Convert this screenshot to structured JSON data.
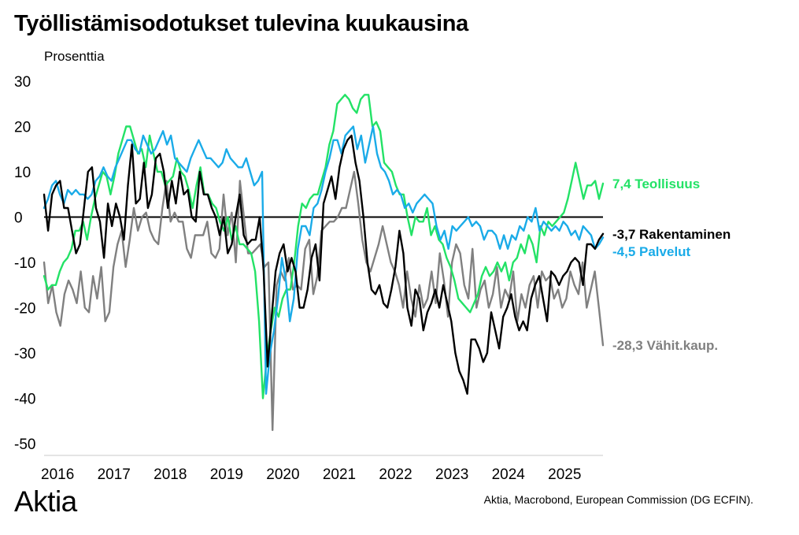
{
  "title": "Työllistämisodotukset tulevina kuukausina",
  "brand": "Aktia",
  "source": "Aktia, Macrobond, European Commission (DG ECFIN).",
  "chart_data": {
    "type": "line",
    "ylabel": "Prosenttia",
    "ylim": [
      -50,
      30
    ],
    "yticks": [
      30,
      20,
      10,
      0,
      -10,
      -20,
      -30,
      -40,
      -50
    ],
    "xlim": [
      2016.0,
      2025.92
    ],
    "xticks": [
      2016,
      2017,
      2018,
      2019,
      2020,
      2021,
      2022,
      2023,
      2024,
      2025
    ],
    "zero_line": true,
    "grid": false,
    "legend": "end-of-line labels",
    "series": [
      {
        "name": "Vähit.kaup.",
        "end_label": "-28,3 Vähit.kaup.",
        "color": "#808080",
        "draw_order": 0,
        "values": [
          -10,
          -19,
          -15,
          -21,
          -24,
          -17,
          -14,
          -16,
          -19,
          -12,
          -20,
          -21,
          -13,
          -18,
          -11,
          -23,
          -21,
          -11,
          -6,
          -3,
          -11,
          -5,
          2,
          -3,
          0,
          1,
          -3,
          -5,
          -6,
          2,
          8,
          -1,
          1,
          -1,
          -1,
          -7,
          -9,
          -4,
          -4,
          -4,
          -1,
          -8,
          -9,
          -7,
          5,
          -4,
          1,
          -10,
          8,
          0,
          -8,
          -8,
          -7,
          -6,
          -11,
          -10,
          -47,
          -15,
          -12,
          -14,
          -9,
          -16,
          -15,
          -16,
          -7,
          -5,
          -17,
          -13,
          -3,
          -2,
          -1,
          -1,
          0,
          2,
          2,
          6,
          10,
          3,
          -5,
          -10,
          -12,
          -9,
          -6,
          -2,
          -6,
          -10,
          -12,
          -15,
          -20,
          -12,
          -18,
          -22,
          -15,
          -20,
          -18,
          -12,
          -19,
          -8,
          -14,
          -22,
          -10,
          -6,
          -8,
          -15,
          -18,
          -7,
          -20,
          -16,
          -14,
          -20,
          -17,
          -11,
          -20,
          -16,
          -18,
          -12,
          -23,
          -17,
          -20,
          -15,
          -13,
          -20,
          -12,
          -14,
          -13,
          -18,
          -16,
          -20,
          -18,
          -12,
          -15,
          -17,
          -10,
          -20,
          -16,
          -12,
          -20,
          -28.3
        ]
      },
      {
        "name": "Teollisuus",
        "end_label": "7,4 Teollisuus",
        "color": "#23e266",
        "draw_order": 1,
        "values": [
          -13,
          -16,
          -15,
          -15,
          -12,
          -10,
          -9,
          -7,
          -3,
          -3,
          -1,
          -5,
          0,
          4,
          7,
          10,
          9,
          5,
          9,
          14,
          17,
          20,
          20,
          17,
          14,
          15,
          11,
          18,
          14,
          10,
          10,
          7,
          8,
          9,
          13,
          10,
          9,
          6,
          2,
          7,
          11,
          5,
          5,
          3,
          2,
          -1,
          -3,
          0,
          -5,
          -2,
          -6,
          -6,
          -7,
          -8,
          -12,
          -23,
          -40,
          -31,
          -25,
          -20,
          -22,
          -18,
          -16,
          -16,
          -10,
          -2,
          3,
          2,
          4,
          5,
          5,
          8,
          11,
          16,
          19,
          25,
          26,
          27,
          26,
          24,
          23,
          26,
          27,
          27,
          20,
          21,
          19,
          12,
          11,
          10,
          7,
          5,
          5,
          0,
          -4,
          0,
          -1,
          -1,
          2,
          -4,
          -2,
          -5,
          -6,
          -9,
          -11,
          -14,
          -18,
          -19,
          -20,
          -21,
          -19,
          -17,
          -13,
          -11,
          -13,
          -12,
          -10,
          -12,
          -10,
          -14,
          -10,
          -9,
          -6,
          -8,
          -4,
          -6,
          -10,
          -2,
          -4,
          -1,
          -2,
          -1,
          0,
          1,
          4,
          8,
          12,
          8,
          4,
          7,
          7,
          8,
          4,
          7.4
        ]
      },
      {
        "name": "Palvelut",
        "end_label": "-4,5 Palvelut",
        "color": "#1aabe8",
        "draw_order": 2,
        "values": [
          2,
          4,
          7,
          8,
          5,
          3,
          6,
          5,
          6,
          5,
          5,
          4,
          5,
          8,
          9,
          11,
          9,
          8,
          11,
          13,
          15,
          17,
          17,
          15,
          14,
          18,
          16,
          14,
          15,
          17,
          19,
          16,
          18,
          13,
          12,
          11,
          10,
          13,
          15,
          17,
          15,
          13,
          13,
          12,
          11,
          12,
          15,
          13,
          12,
          11,
          11,
          13,
          10,
          7,
          8,
          10,
          -39,
          -30,
          -25,
          -18,
          -9,
          -14,
          -23,
          -18,
          -7,
          -2,
          -2,
          -4,
          2,
          3,
          6,
          10,
          13,
          17,
          17,
          14,
          18,
          19,
          20,
          15,
          18,
          12,
          16,
          20,
          14,
          11,
          10,
          8,
          5,
          6,
          5,
          2,
          3,
          1,
          3,
          4,
          5,
          4,
          3,
          -2,
          -5,
          -3,
          -7,
          -2,
          -3,
          -2,
          -1,
          0,
          -2,
          -1,
          -2,
          -5,
          -3,
          -3,
          -4,
          -7,
          -4,
          -7,
          -4,
          -5,
          -2,
          -3,
          0,
          -1,
          2,
          -3,
          -1,
          -2,
          -3,
          -2,
          -3,
          -1,
          -2,
          -4,
          -3,
          -5,
          -2,
          -3,
          -4,
          -7,
          -6,
          -4.5
        ]
      },
      {
        "name": "Rakentaminen",
        "end_label": "-3,7 Rakentaminen",
        "color": "#000000",
        "draw_order": 3,
        "values": [
          5,
          -3,
          5,
          7,
          8,
          2,
          2,
          -3,
          -8,
          -6,
          2,
          10,
          11,
          2,
          -1,
          -9,
          3,
          -2,
          3,
          0,
          -5,
          7,
          16,
          3,
          4,
          12,
          2,
          5,
          13,
          14,
          10,
          2,
          8,
          3,
          10,
          5,
          6,
          0,
          -1,
          10,
          5,
          5,
          2,
          0,
          -4,
          0,
          -8,
          -6,
          0,
          5,
          -4,
          -6,
          -5,
          -5,
          0,
          -12,
          -33,
          -22,
          -12,
          -8,
          -6,
          -12,
          -9,
          -12,
          -20,
          -20,
          -16,
          -9,
          -6,
          -14,
          3,
          6,
          9,
          4,
          11,
          15,
          17,
          18,
          12,
          8,
          0,
          -10,
          -16,
          -17,
          -15,
          -19,
          -20,
          -16,
          -11,
          -3,
          -8,
          -20,
          -24,
          -16,
          -18,
          -25,
          -21,
          -19,
          -16,
          -20,
          -15,
          -19,
          -23,
          -30,
          -34,
          -36,
          -39,
          -27,
          -27,
          -29,
          -32,
          -30,
          -21,
          -25,
          -29,
          -22,
          -20,
          -17,
          -22,
          -25,
          -23,
          -25,
          -18,
          -15,
          -13,
          -18,
          -23,
          -12,
          -13,
          -15,
          -13,
          -12,
          -10,
          -9,
          -10,
          -15,
          -6,
          -6,
          -7,
          -5,
          -3.7
        ]
      }
    ]
  }
}
